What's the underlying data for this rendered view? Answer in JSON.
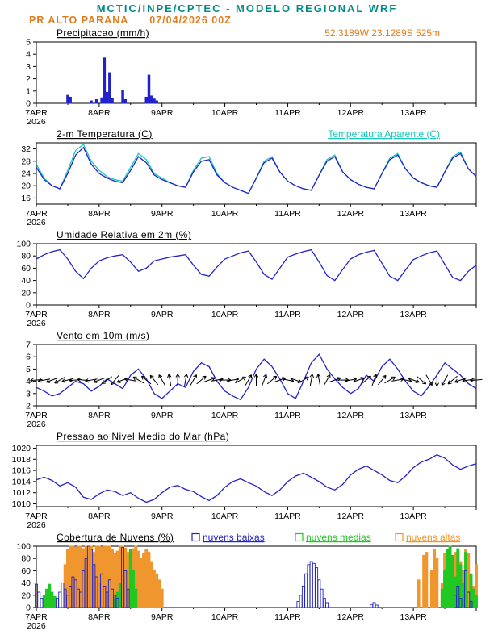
{
  "header": {
    "title": "MCTIC/INPE/CPTEC - MODELO REGIONAL WRF",
    "station": "PR ALTO PARANA",
    "run": "07/04/2026 00Z",
    "coords": "52.3189W 23.1289S 525m"
  },
  "colors": {
    "teal": "#008b8b",
    "orange": "#e07d1e",
    "blue": "#2222cc",
    "cyan": "#18c8b8",
    "green": "#22c822",
    "cloud_orange": "#f0962e",
    "axis": "#000000"
  },
  "x_axis": {
    "labels": [
      "7APR",
      "8APR",
      "9APR",
      "10APR",
      "11APR",
      "12APR",
      "13APR"
    ],
    "year": "2026",
    "total_hours": 168,
    "label_hours": [
      0,
      24,
      48,
      72,
      96,
      120,
      144
    ]
  },
  "chart_data": [
    {
      "id": "precipitation",
      "type": "bar",
      "title": "Precipitacao (mm/h)",
      "right_label": {
        "text": "52.3189W 23.1289S 525m",
        "color": "orange",
        "underline": false
      },
      "ylim": [
        0,
        5
      ],
      "yticks": [
        0,
        1,
        2,
        3,
        4,
        5
      ],
      "bars": {
        "color": "blue",
        "width": 2.6,
        "points": [
          [
            12,
            0.65
          ],
          [
            13,
            0.5
          ],
          [
            21,
            0.2
          ],
          [
            23,
            0.3
          ],
          [
            25,
            0.45
          ],
          [
            26,
            3.7
          ],
          [
            27,
            0.9
          ],
          [
            28,
            2.5
          ],
          [
            29,
            0.4
          ],
          [
            33,
            1.05
          ],
          [
            34,
            0.3
          ],
          [
            42,
            0.5
          ],
          [
            43,
            2.3
          ],
          [
            44,
            0.6
          ],
          [
            45,
            0.35
          ],
          [
            46,
            0.2
          ]
        ]
      }
    },
    {
      "id": "temperature-2m",
      "type": "line",
      "title": "2-m Temperatura (C)",
      "right_label": {
        "text": "Temperatura Aparente (C)",
        "color": "cyan",
        "underline": true
      },
      "ylim": [
        14,
        34
      ],
      "yticks": [
        16,
        20,
        24,
        28,
        32
      ],
      "series": [
        {
          "name": "Temperatura Aparente (C)",
          "color": "cyan",
          "step": 3,
          "values": [
            27,
            22.5,
            20,
            19,
            25,
            31.5,
            33.5,
            28,
            25,
            23,
            22,
            21.5,
            26,
            30.5,
            28.5,
            24,
            22.5,
            21,
            20,
            19.5,
            25,
            29,
            29.5,
            24,
            21,
            19.5,
            18.5,
            17.5,
            22.5,
            28,
            29.5,
            24.5,
            21.5,
            20,
            19,
            18.5,
            23.5,
            28.5,
            30,
            24.5,
            22,
            20.5,
            19.5,
            19,
            24,
            29,
            30.5,
            25.5,
            22.5,
            21,
            20,
            19.5,
            24.5,
            29.5,
            31,
            25.5,
            23
          ]
        },
        {
          "name": "2-m Temperatura (C)",
          "color": "blue",
          "step": 3,
          "values": [
            26,
            22,
            20,
            19,
            24,
            30,
            32.5,
            27,
            24,
            22.5,
            21.5,
            21,
            25,
            29.5,
            27.5,
            23.5,
            22,
            21,
            20,
            19.5,
            24.5,
            28,
            28.5,
            23.5,
            21,
            19.5,
            18.5,
            17.5,
            22.5,
            27.5,
            29,
            24.5,
            21.5,
            20,
            19,
            18.5,
            23.5,
            28,
            29.5,
            24.5,
            22,
            20.5,
            19.5,
            19,
            24,
            28.5,
            30,
            25.5,
            22.5,
            21,
            20,
            19.5,
            24.5,
            29,
            30.5,
            25.5,
            23
          ]
        }
      ]
    },
    {
      "id": "relative-humidity-2m",
      "type": "line",
      "title": "Umidade Relativa em 2m (%)",
      "ylim": [
        0,
        100
      ],
      "yticks": [
        0,
        20,
        40,
        60,
        80,
        100
      ],
      "series": [
        {
          "name": "Umidade Relativa em 2m (%)",
          "color": "blue",
          "step": 3,
          "values": [
            75,
            82,
            87,
            90,
            75,
            55,
            43,
            60,
            72,
            77,
            80,
            82,
            70,
            55,
            60,
            72,
            75,
            78,
            80,
            82,
            65,
            50,
            47,
            62,
            75,
            80,
            85,
            88,
            70,
            50,
            42,
            60,
            78,
            83,
            87,
            90,
            70,
            48,
            40,
            58,
            75,
            82,
            86,
            89,
            68,
            47,
            40,
            57,
            74,
            80,
            85,
            88,
            66,
            45,
            40,
            55,
            65
          ]
        }
      ]
    },
    {
      "id": "wind-10m",
      "type": "line",
      "title": "Vento em 10m (m/s)",
      "ylim": [
        2,
        7
      ],
      "yticks": [
        2,
        3,
        4,
        5,
        6,
        7
      ],
      "series": [
        {
          "name": "Velocidade do vento 10m (m/s)",
          "color": "blue",
          "step": 3,
          "values": [
            3.5,
            3.2,
            2.8,
            3,
            3.5,
            4,
            3.8,
            3.2,
            3.6,
            4.2,
            3.8,
            3.4,
            4.5,
            5,
            4.2,
            3,
            2.6,
            3.2,
            3.8,
            3.5,
            4.8,
            5.5,
            5.2,
            4,
            3.2,
            2.8,
            2.5,
            3.5,
            5,
            5.8,
            5.2,
            4.2,
            3,
            2.6,
            4,
            5.5,
            6.2,
            5,
            4.2,
            3.5,
            3,
            3.4,
            4.5,
            4,
            5.2,
            5.8,
            5,
            4,
            3.2,
            2.8,
            3.6,
            4.5,
            5.5,
            5,
            4.5,
            3.8,
            3.4
          ]
        }
      ],
      "arrows": {
        "color": "axis",
        "step": 3,
        "anchor_value": 4.1,
        "length": 15,
        "dirs_deg": [
          185,
          190,
          200,
          210,
          195,
          185,
          175,
          190,
          200,
          215,
          230,
          200,
          170,
          150,
          140,
          130,
          120,
          100,
          90,
          80,
          60,
          40,
          20,
          10,
          0,
          10,
          30,
          60,
          90,
          70,
          40,
          20,
          350,
          340,
          30,
          80,
          100,
          60,
          20,
          0,
          10,
          20,
          40,
          70,
          50,
          30,
          10,
          350,
          340,
          320,
          300,
          270,
          240,
          220,
          200,
          190,
          185
        ]
      }
    },
    {
      "id": "mslp",
      "type": "line",
      "title": "Pressao ao Nivel Medio do Mar (hPa)",
      "ylim": [
        1009.5,
        1020.5
      ],
      "yticks": [
        1010,
        1012,
        1014,
        1016,
        1018,
        1020
      ],
      "series": [
        {
          "name": "Pressao ao Nivel Medio do Mar (hPa)",
          "color": "blue",
          "step": 3,
          "values": [
            1014.3,
            1014.8,
            1014.2,
            1013.2,
            1013.8,
            1013,
            1011.2,
            1010.8,
            1011.8,
            1012.5,
            1012.2,
            1011.5,
            1012,
            1011,
            1010.3,
            1010.8,
            1012,
            1013,
            1013.3,
            1012.6,
            1012.2,
            1011.3,
            1010.6,
            1011.5,
            1013,
            1014,
            1014.5,
            1013.8,
            1013.2,
            1012.2,
            1011.5,
            1012.5,
            1014,
            1015,
            1015.5,
            1014.8,
            1014,
            1013,
            1012.5,
            1013.5,
            1015.2,
            1016.2,
            1016.8,
            1016,
            1015.2,
            1014.2,
            1013.8,
            1015,
            1016.5,
            1017.5,
            1018,
            1018.8,
            1018.2,
            1017,
            1016.2,
            1016.8,
            1017.2
          ]
        }
      ]
    },
    {
      "id": "cloud-cover",
      "type": "bar",
      "title": "Cobertura de Nuvens (%)",
      "ylim": [
        0,
        100
      ],
      "yticks": [
        0,
        20,
        40,
        60,
        80,
        100
      ],
      "legend": [
        {
          "label": "nuvens baixas",
          "color": "blue"
        },
        {
          "label": "nuvens medias",
          "color": "green"
        },
        {
          "label": "nuvens altas",
          "color": "cloud_orange"
        }
      ],
      "bar_series": [
        {
          "name": "nuvens altas",
          "color": "cloud_orange",
          "fill": true,
          "width": 3,
          "points": [
            [
              11,
              70
            ],
            [
              12,
              95
            ],
            [
              13,
              100
            ],
            [
              14,
              100
            ],
            [
              15,
              98
            ],
            [
              16,
              100
            ],
            [
              17,
              100
            ],
            [
              18,
              96
            ],
            [
              19,
              100
            ],
            [
              20,
              100
            ],
            [
              21,
              100
            ],
            [
              22,
              90
            ],
            [
              23,
              100
            ],
            [
              24,
              100
            ],
            [
              25,
              98
            ],
            [
              26,
              100
            ],
            [
              27,
              100
            ],
            [
              28,
              100
            ],
            [
              29,
              95
            ],
            [
              30,
              88
            ],
            [
              31,
              92
            ],
            [
              32,
              100
            ],
            [
              33,
              100
            ],
            [
              34,
              97
            ],
            [
              35,
              90
            ],
            [
              36,
              85
            ],
            [
              37,
              96
            ],
            [
              38,
              100
            ],
            [
              39,
              92
            ],
            [
              40,
              80
            ],
            [
              41,
              88
            ],
            [
              42,
              95
            ],
            [
              43,
              90
            ],
            [
              44,
              75
            ],
            [
              45,
              60
            ],
            [
              46,
              55
            ],
            [
              47,
              45
            ],
            [
              48,
              30
            ],
            [
              146,
              45
            ],
            [
              148,
              85
            ],
            [
              149,
              90
            ],
            [
              151,
              60
            ],
            [
              152,
              95
            ],
            [
              153,
              80
            ],
            [
              155,
              40
            ],
            [
              156,
              88
            ],
            [
              157,
              95
            ],
            [
              158,
              70
            ],
            [
              159,
              55
            ],
            [
              160,
              90
            ],
            [
              161,
              85
            ],
            [
              162,
              75
            ],
            [
              163,
              60
            ],
            [
              164,
              95
            ],
            [
              165,
              88
            ],
            [
              166,
              50
            ],
            [
              167,
              35
            ],
            [
              168,
              70
            ]
          ]
        },
        {
          "name": "nuvens medias",
          "color": "green",
          "fill": true,
          "width": 3,
          "points": [
            [
              3,
              20
            ],
            [
              4,
              30
            ],
            [
              5,
              38
            ],
            [
              6,
              25
            ],
            [
              7,
              18
            ],
            [
              30,
              15
            ],
            [
              31,
              25
            ],
            [
              32,
              40
            ],
            [
              36,
              95
            ],
            [
              37,
              60
            ],
            [
              38,
              30
            ],
            [
              155,
              30
            ],
            [
              156,
              60
            ],
            [
              157,
              95
            ],
            [
              158,
              100
            ],
            [
              159,
              85
            ],
            [
              160,
              50
            ],
            [
              161,
              96
            ],
            [
              162,
              70
            ],
            [
              163,
              40
            ],
            [
              164,
              90
            ],
            [
              166,
              55
            ],
            [
              167,
              30
            ],
            [
              168,
              20
            ]
          ]
        },
        {
          "name": "nuvens baixas",
          "color": "blue",
          "fill": false,
          "width": 3,
          "points": [
            [
              0,
              38
            ],
            [
              1,
              25
            ],
            [
              2,
              15
            ],
            [
              8,
              15
            ],
            [
              9,
              25
            ],
            [
              10,
              40
            ],
            [
              11,
              30
            ],
            [
              12,
              20
            ],
            [
              13,
              35
            ],
            [
              14,
              50
            ],
            [
              15,
              45
            ],
            [
              16,
              30
            ],
            [
              17,
              25
            ],
            [
              18,
              60
            ],
            [
              19,
              80
            ],
            [
              20,
              100
            ],
            [
              21,
              95
            ],
            [
              22,
              70
            ],
            [
              23,
              50
            ],
            [
              24,
              40
            ],
            [
              25,
              55
            ],
            [
              26,
              35
            ],
            [
              27,
              25
            ],
            [
              28,
              45
            ],
            [
              29,
              30
            ],
            [
              30,
              20
            ],
            [
              31,
              15
            ],
            [
              33,
              98
            ],
            [
              34,
              60
            ],
            [
              35,
              30
            ],
            [
              100,
              10
            ],
            [
              101,
              20
            ],
            [
              102,
              35
            ],
            [
              103,
              55
            ],
            [
              104,
              70
            ],
            [
              105,
              75
            ],
            [
              106,
              72
            ],
            [
              107,
              65
            ],
            [
              108,
              45
            ],
            [
              109,
              30
            ],
            [
              110,
              15
            ],
            [
              111,
              8
            ],
            [
              128,
              5
            ],
            [
              129,
              8
            ],
            [
              130,
              4
            ],
            [
              160,
              20
            ],
            [
              161,
              35
            ],
            [
              162,
              15
            ],
            [
              164,
              60
            ],
            [
              165,
              25
            ],
            [
              166,
              10
            ]
          ]
        }
      ]
    }
  ]
}
